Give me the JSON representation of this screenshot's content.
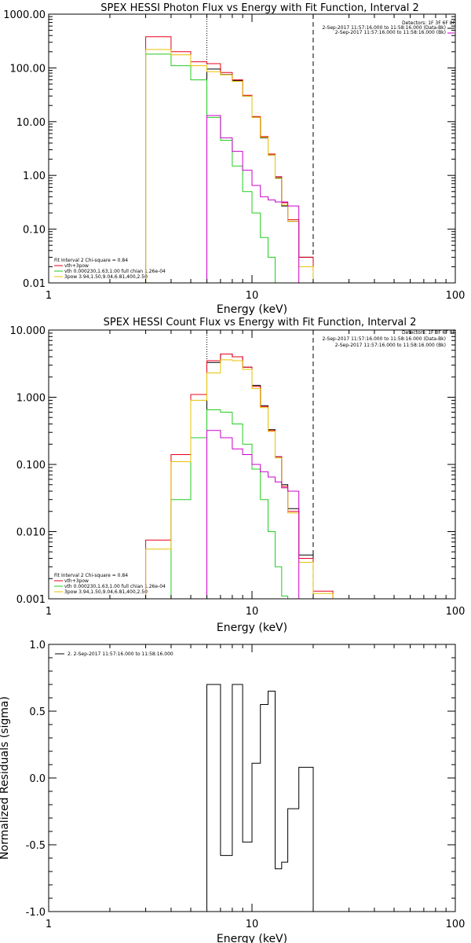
{
  "chart_data": [
    {
      "type": "line",
      "title": "SPEX HESSI Photon Flux vs Energy with Fit Function, Interval 2",
      "xlabel": "Energy (keV)",
      "ylabel": "",
      "xscale": "log",
      "yscale": "log",
      "xlim": [
        1,
        100
      ],
      "ylim": [
        0.01,
        1000
      ],
      "xticks": [
        {
          "v": 1,
          "label": "1"
        },
        {
          "v": 10,
          "label": "10"
        },
        {
          "v": 100,
          "label": "100"
        }
      ],
      "yticks": [
        {
          "v": 0.01,
          "label": "0.01"
        },
        {
          "v": 0.1,
          "label": "0.10"
        },
        {
          "v": 1,
          "label": "1.00"
        },
        {
          "v": 10,
          "label": "10.00"
        },
        {
          "v": 100,
          "label": "100.00"
        },
        {
          "v": 1000,
          "label": "1000.00"
        }
      ],
      "x_edges": [
        3,
        4,
        5,
        6,
        7,
        8,
        9,
        10,
        11,
        12,
        13,
        14,
        15,
        17,
        20,
        25
      ],
      "series": [
        {
          "name": "Detectors: 1F 3F 6F 8F",
          "color": "#000000",
          "values": [
            null,
            null,
            null,
            95,
            75,
            58,
            30,
            12,
            5,
            2.4,
            0.9,
            0.27,
            0.14,
            0.03,
            null
          ]
        },
        {
          "name": "vth+3pow",
          "color": "#e8001c",
          "values": [
            380,
            200,
            130,
            120,
            82,
            60,
            31,
            12.5,
            5.3,
            2.5,
            0.95,
            0.31,
            0.15,
            0.03,
            0.01
          ]
        },
        {
          "name": "vth 0.000230,1.63,1.00 full chian 1.26e-04",
          "color": "#22cc22",
          "values": [
            180,
            110,
            60,
            12,
            4.5,
            1.5,
            0.5,
            0.2,
            0.07,
            0.03,
            0.01,
            null,
            null,
            null,
            null
          ]
        },
        {
          "name": "3pow 3.94,1.50,9.04,6.81,400,2.50",
          "color": "#e8c000",
          "values": [
            220,
            175,
            110,
            85,
            74,
            56,
            30,
            12,
            5.1,
            2.4,
            0.88,
            0.28,
            0.14,
            0.02,
            0.01
          ]
        },
        {
          "name": "2-Sep-2017 11:57:16.000 to 11:58:16.000 (Bk)",
          "color": "#cc00cc",
          "values": [
            null,
            null,
            null,
            13,
            5,
            2.8,
            1.25,
            0.65,
            0.4,
            0.35,
            0.32,
            0.32,
            0.27,
            null,
            null
          ]
        }
      ],
      "vlines": [
        {
          "x": 6,
          "style": "dotted"
        },
        {
          "x": 20,
          "style": "dashed"
        }
      ],
      "legend_top": [
        "Detectors: 1F 3F 6F 8F",
        "2-Sep-2017 11:57:16.000 to 11:58:16.000 (Data-Bk)",
        "2-Sep-2017 11:57:16.000 to 11:58:16.000 (Bk)"
      ],
      "legend_bottom": [
        "Fit Interval 2   Chi-square = 0.84",
        "vth+3pow",
        "vth 0.000230,1.63,1.00  full chian 1.26e-04",
        "3pow 3.94,1.50,9.04,6.81,400,2.50"
      ]
    },
    {
      "type": "line",
      "title": "SPEX HESSI Count Flux vs Energy with Fit Function, Interval 2",
      "xlabel": "Energy (keV)",
      "ylabel": "",
      "xscale": "log",
      "yscale": "log",
      "xlim": [
        1,
        100
      ],
      "ylim": [
        0.001,
        10
      ],
      "xticks": [
        {
          "v": 1,
          "label": "1"
        },
        {
          "v": 10,
          "label": "10"
        },
        {
          "v": 100,
          "label": "100"
        }
      ],
      "yticks": [
        {
          "v": 0.001,
          "label": "0.001"
        },
        {
          "v": 0.01,
          "label": "0.010"
        },
        {
          "v": 0.1,
          "label": "0.100"
        },
        {
          "v": 1,
          "label": "1.000"
        },
        {
          "v": 10,
          "label": "10.000"
        }
      ],
      "x_edges": [
        3,
        4,
        5,
        6,
        7,
        8,
        9,
        10,
        11,
        12,
        13,
        14,
        15,
        17,
        20,
        25
      ],
      "series": [
        {
          "name": "Detectors: 1F 3F 6F 8F",
          "color": "#000000",
          "values": [
            null,
            null,
            null,
            3.3,
            4.4,
            4.0,
            2.8,
            1.5,
            0.75,
            0.33,
            0.13,
            0.05,
            0.022,
            0.0045,
            null
          ]
        },
        {
          "name": "vth+3pow",
          "color": "#e8001c",
          "values": [
            0.0075,
            0.14,
            1.1,
            3.5,
            4.4,
            4.0,
            2.8,
            1.45,
            0.73,
            0.32,
            0.13,
            0.047,
            0.02,
            0.004,
            0.0013
          ]
        },
        {
          "name": "vth 0.000230,1.63,1.00 full chian 1.26e-04",
          "color": "#22cc22",
          "values": [
            null,
            0.03,
            0.25,
            0.65,
            0.6,
            0.4,
            0.2,
            0.085,
            0.03,
            0.01,
            0.003,
            0.0011,
            null,
            null,
            null
          ]
        },
        {
          "name": "3pow 3.94,1.50,9.04,6.81,400,2.50",
          "color": "#e8c000",
          "values": [
            0.0055,
            0.11,
            0.9,
            2.3,
            3.6,
            3.5,
            2.6,
            1.35,
            0.7,
            0.31,
            0.125,
            0.045,
            0.019,
            0.0035,
            0.0012
          ]
        },
        {
          "name": "2-Sep-2017 11:57:16.000 to 11:58:16.000 (Bk)",
          "color": "#cc00cc",
          "values": [
            null,
            null,
            null,
            0.32,
            0.25,
            0.17,
            0.14,
            0.1,
            0.078,
            0.065,
            0.055,
            0.045,
            0.04,
            null,
            null
          ]
        }
      ],
      "vlines": [
        {
          "x": 6,
          "style": "dotted"
        },
        {
          "x": 20,
          "style": "dashed"
        }
      ],
      "legend_top": [
        "Detectors: 1F 3F 6F 8F",
        "2-Sep-2017 11:57:16.000 to 11:58:16.000 (Data-Bk)",
        "2-Sep-2017 11:57:16.000 to 11:58:16.000 (Bk)"
      ],
      "legend_bottom": [
        "Fit Interval 2   Chi-square = 0.84",
        "vth+3pow",
        "vth 0.000230,1.63,1.00  full chian 1.26e-04",
        "3pow 3.94,1.50,9.04,6.81,400,2.50"
      ]
    },
    {
      "type": "line",
      "title": "",
      "xlabel": "Energy (keV)",
      "ylabel": "Normalized Residuals (sigma)",
      "xscale": "log",
      "yscale": "linear",
      "xlim": [
        1,
        100
      ],
      "ylim": [
        -1.0,
        1.0
      ],
      "xticks": [
        {
          "v": 1,
          "label": "1"
        },
        {
          "v": 10,
          "label": "10"
        },
        {
          "v": 100,
          "label": "100"
        }
      ],
      "yticks": [
        {
          "v": -1.0,
          "label": "-1.0"
        },
        {
          "v": -0.5,
          "label": "-0.5"
        },
        {
          "v": 0.0,
          "label": "0.0"
        },
        {
          "v": 0.5,
          "label": "0.5"
        },
        {
          "v": 1.0,
          "label": "1.0"
        }
      ],
      "x_edges": [
        6,
        7,
        8,
        9,
        10,
        11,
        12,
        13,
        14,
        15,
        17,
        20
      ],
      "series": [
        {
          "name": "2. 2-Sep-2017 11:57:16.000 to 11:58:16.000",
          "color": "#000000",
          "values": [
            0.7,
            -0.58,
            0.7,
            -0.48,
            0.11,
            0.55,
            0.65,
            -0.68,
            -0.63,
            -0.23,
            0.08
          ]
        }
      ],
      "legend": [
        "2. 2-Sep-2017 11:57:16.000 to 11:58:16.000"
      ]
    }
  ]
}
